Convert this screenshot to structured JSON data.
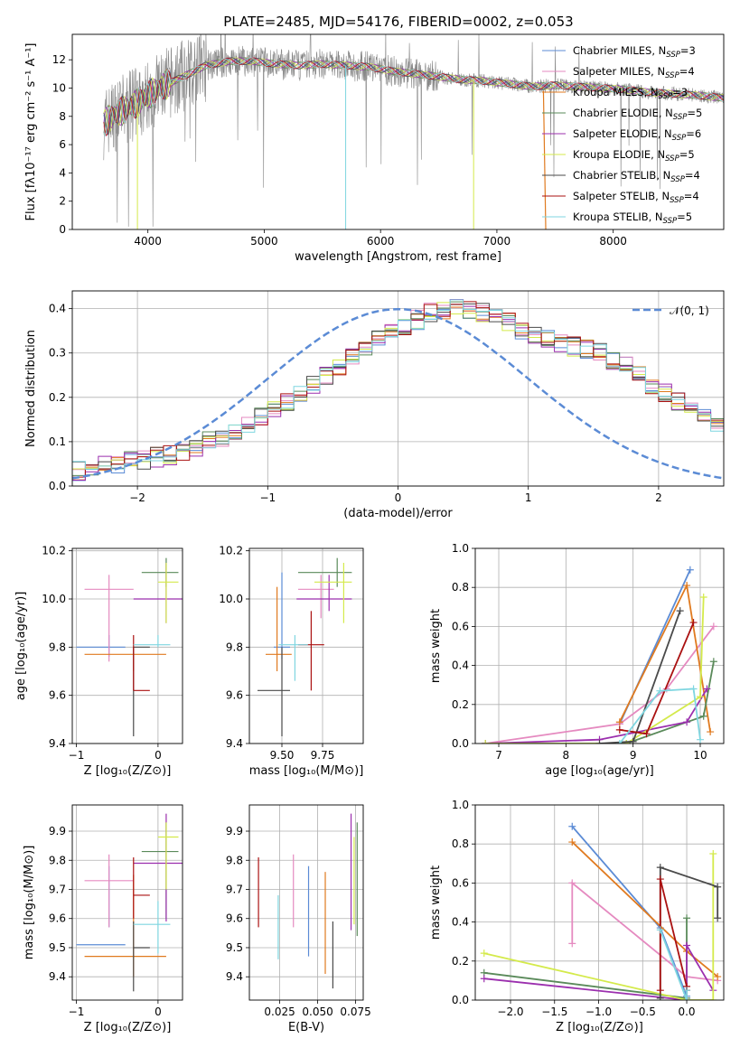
{
  "figure_title": "PLATE=2485, MJD=54176, FIBERID=0002, z=0.053",
  "colors": {
    "CM": "#5b8bd5",
    "SM": "#e58ac0",
    "KM": "#e07a1f",
    "CE": "#5a8a5a",
    "SE": "#9b2fae",
    "KE": "#d4ea4b",
    "CS": "#4a4a4a",
    "SS": "#aa1111",
    "KS": "#7fd6e0",
    "data": "#888888",
    "norm": "#5b8bd5"
  },
  "chart_data": [
    {
      "id": "spectrum",
      "type": "line",
      "xlabel": "wavelength [Angstrom, rest frame]",
      "ylabel": "Flux [fλ10⁻¹⁷ erg cm⁻² s⁻¹ A⁻¹]",
      "xlim": [
        3350,
        8950
      ],
      "ylim": [
        0,
        13.8
      ],
      "xticks": [
        4000,
        5000,
        6000,
        7000,
        8000
      ],
      "yticks": [
        0,
        2,
        4,
        6,
        8,
        10,
        12
      ],
      "data_range": [
        3620,
        8950
      ],
      "continuum": {
        "x": [
          3620,
          3700,
          3800,
          3900,
          4000,
          4100,
          4200,
          4300,
          4400,
          4500,
          4700,
          4900,
          5100,
          5300,
          5500,
          5700,
          5900,
          6100,
          6300,
          6500,
          6700,
          6900,
          7100,
          7300,
          7500,
          7700,
          7900,
          8100,
          8300,
          8500,
          8700,
          8950
        ],
        "y": [
          7.5,
          8.0,
          8.5,
          8.9,
          9.5,
          10.0,
          10.4,
          10.8,
          11.2,
          11.6,
          11.9,
          11.9,
          11.7,
          11.6,
          11.7,
          11.6,
          11.5,
          11.2,
          11.0,
          10.8,
          10.6,
          10.5,
          10.3,
          10.1,
          10.2,
          10.1,
          10.0,
          9.9,
          9.7,
          9.6,
          9.5,
          9.3
        ]
      },
      "legend": [
        {
          "label": "Chabrier MILES, N",
          "nssp": "3",
          "color": "CM"
        },
        {
          "label": "Salpeter MILES, N",
          "nssp": "4",
          "color": "SM"
        },
        {
          "label": "Kroupa MILES, N",
          "nssp": "3",
          "color": "KM"
        },
        {
          "label": "Chabrier ELODIE, N",
          "nssp": "5",
          "color": "CE"
        },
        {
          "label": "Salpeter ELODIE, N",
          "nssp": "6",
          "color": "SE"
        },
        {
          "label": "Kroupa ELODIE, N",
          "nssp": "5",
          "color": "KE"
        },
        {
          "label": "Chabrier STELIB, N",
          "nssp": "4",
          "color": "CS"
        },
        {
          "label": "Salpeter STELIB, N",
          "nssp": "4",
          "color": "SS"
        },
        {
          "label": "Kroupa STELIB, N",
          "nssp": "5",
          "color": "KS"
        }
      ]
    },
    {
      "id": "residuals",
      "type": "histogram",
      "xlabel": "(data-model)/error",
      "ylabel": "Normed distribution",
      "xlim": [
        -2.5,
        2.5
      ],
      "ylim": [
        0,
        0.44
      ],
      "xticks": [
        -2,
        -1,
        0,
        1,
        2
      ],
      "yticks": [
        0.0,
        0.1,
        0.2,
        0.3,
        0.4
      ],
      "bin_start": -2.5,
      "bin_width": 0.1,
      "base": [
        0.035,
        0.04,
        0.045,
        0.05,
        0.055,
        0.06,
        0.065,
        0.07,
        0.08,
        0.09,
        0.1,
        0.11,
        0.125,
        0.14,
        0.155,
        0.17,
        0.19,
        0.21,
        0.23,
        0.25,
        0.27,
        0.29,
        0.31,
        0.33,
        0.345,
        0.36,
        0.375,
        0.39,
        0.395,
        0.4,
        0.4,
        0.39,
        0.38,
        0.37,
        0.35,
        0.34,
        0.33,
        0.32,
        0.315,
        0.31,
        0.3,
        0.285,
        0.27,
        0.25,
        0.23,
        0.21,
        0.19,
        0.17,
        0.15,
        0.13,
        0.115,
        0.1,
        0.09,
        0.08,
        0.07,
        0.06,
        0.055,
        0.05,
        0.045,
        0.04,
        0.035
      ],
      "gauss_label": "𝒩(0, 1)"
    },
    {
      "id": "age-Z",
      "type": "errorbar",
      "xlabel": "Z [log₁₀(Z/Z⊙)]",
      "ylabel": "age  [log₁₀(age/yr)]",
      "xlim": [
        -1.05,
        0.3
      ],
      "ylim": [
        9.4,
        10.21
      ],
      "xticks": [
        -1,
        0
      ],
      "yticks": [
        9.4,
        9.6,
        9.8,
        10.0,
        10.2
      ],
      "points": [
        {
          "c": "CM",
          "x": -0.6,
          "y": 9.8,
          "xe": [
            -1.0,
            -0.4
          ],
          "ye": [
            9.76,
            9.85
          ]
        },
        {
          "c": "SM",
          "x": -0.6,
          "y": 10.04,
          "xe": [
            -0.9,
            -0.3
          ],
          "ye": [
            9.74,
            10.1
          ]
        },
        {
          "c": "KM",
          "x": -0.3,
          "y": 9.77,
          "xe": [
            -0.9,
            0.1
          ],
          "ye": [
            9.7,
            9.8
          ]
        },
        {
          "c": "CE",
          "x": 0.1,
          "y": 10.11,
          "xe": [
            -0.2,
            0.25
          ],
          "ye": [
            10.05,
            10.17
          ]
        },
        {
          "c": "SE",
          "x": 0.1,
          "y": 10.0,
          "xe": [
            -0.3,
            0.3
          ],
          "ye": [
            9.9,
            10.15
          ]
        },
        {
          "c": "KE",
          "x": 0.1,
          "y": 10.07,
          "xe": [
            0.0,
            0.25
          ],
          "ye": [
            9.9,
            10.15
          ]
        },
        {
          "c": "CS",
          "x": -0.3,
          "y": 9.8,
          "xe": [
            -0.3,
            -0.1
          ],
          "ye": [
            9.43,
            9.8
          ]
        },
        {
          "c": "SS",
          "x": -0.3,
          "y": 9.62,
          "xe": [
            -0.3,
            -0.1
          ],
          "ye": [
            9.62,
            9.85
          ]
        },
        {
          "c": "KS",
          "x": 0.0,
          "y": 9.81,
          "xe": [
            -0.3,
            0.15
          ],
          "ye": [
            9.8,
            9.85
          ]
        }
      ]
    },
    {
      "id": "age-mass",
      "type": "errorbar",
      "xlabel": "mass [log₁₀(M/M⊙)]",
      "ylabel": "",
      "xlim": [
        9.3,
        10.0
      ],
      "ylim": [
        9.4,
        10.21
      ],
      "xticks": [
        9.5,
        9.75
      ],
      "yticks": [
        9.4,
        9.6,
        9.8,
        10.0,
        10.2
      ],
      "points": [
        {
          "c": "CM",
          "x": 9.5,
          "y": 9.8,
          "xe": [
            9.45,
            9.55
          ],
          "ye": [
            9.75,
            10.11
          ]
        },
        {
          "c": "SM",
          "x": 9.74,
          "y": 10.04,
          "xe": [
            9.6,
            9.82
          ],
          "ye": [
            9.92,
            10.1
          ]
        },
        {
          "c": "KM",
          "x": 9.47,
          "y": 9.77,
          "xe": [
            9.4,
            9.56
          ],
          "ye": [
            9.7,
            10.05
          ]
        },
        {
          "c": "CE",
          "x": 9.84,
          "y": 10.11,
          "xe": [
            9.6,
            9.93
          ],
          "ye": [
            10.05,
            10.17
          ]
        },
        {
          "c": "SE",
          "x": 9.79,
          "y": 10.0,
          "xe": [
            9.59,
            9.93
          ],
          "ye": [
            9.95,
            10.1
          ]
        },
        {
          "c": "KE",
          "x": 9.88,
          "y": 10.07,
          "xe": [
            9.7,
            9.93
          ],
          "ye": [
            9.9,
            10.15
          ]
        },
        {
          "c": "CS",
          "x": 9.5,
          "y": 9.62,
          "xe": [
            9.35,
            9.55
          ],
          "ye": [
            9.43,
            9.8
          ]
        },
        {
          "c": "SS",
          "x": 9.68,
          "y": 9.81,
          "xe": [
            9.6,
            9.76
          ],
          "ye": [
            9.62,
            9.95
          ]
        },
        {
          "c": "KS",
          "x": 9.58,
          "y": 9.81,
          "xe": [
            9.48,
            9.66
          ],
          "ye": [
            9.66,
            9.85
          ]
        }
      ]
    },
    {
      "id": "weight-age",
      "type": "line",
      "xlabel": "age  [log₁₀(age/yr)]",
      "ylabel": "mass weight",
      "xlim": [
        6.65,
        10.35
      ],
      "ylim": [
        0,
        1.0
      ],
      "xticks": [
        7,
        8,
        9,
        10
      ],
      "yticks": [
        0.0,
        0.2,
        0.4,
        0.6,
        0.8,
        1.0
      ],
      "series": [
        {
          "c": "CM",
          "x": [
            8.8,
            9.85
          ],
          "y": [
            0.1,
            0.89
          ]
        },
        {
          "c": "SM",
          "x": [
            6.8,
            8.8,
            9.5,
            10.2
          ],
          "y": [
            0.0,
            0.1,
            0.28,
            0.6
          ]
        },
        {
          "c": "KM",
          "x": [
            8.8,
            9.8,
            10.15
          ],
          "y": [
            0.11,
            0.81,
            0.06
          ]
        },
        {
          "c": "CE",
          "x": [
            6.8,
            8.9,
            10.05,
            10.2
          ],
          "y": [
            0.0,
            0.0,
            0.14,
            0.42
          ]
        },
        {
          "c": "SE",
          "x": [
            6.8,
            8.5,
            9.8,
            10.1
          ],
          "y": [
            0.0,
            0.02,
            0.11,
            0.28
          ]
        },
        {
          "c": "KE",
          "x": [
            6.8,
            8.9,
            10.0,
            10.05
          ],
          "y": [
            0.0,
            0.0,
            0.24,
            0.75
          ]
        },
        {
          "c": "CS",
          "x": [
            8.5,
            9.0,
            9.7
          ],
          "y": [
            0.0,
            0.01,
            0.68
          ]
        },
        {
          "c": "SS",
          "x": [
            8.8,
            9.2,
            9.9
          ],
          "y": [
            0.07,
            0.05,
            0.62
          ]
        },
        {
          "c": "KS",
          "x": [
            8.8,
            9.4,
            9.9,
            10.0
          ],
          "y": [
            0.0,
            0.27,
            0.28,
            0.02
          ]
        }
      ]
    },
    {
      "id": "mass-Z",
      "type": "errorbar",
      "xlabel": "Z [log₁₀(Z/Z⊙)]",
      "ylabel": "mass [log₁₀(M/M⊙)]",
      "xlim": [
        -1.05,
        0.3
      ],
      "ylim": [
        9.32,
        9.99
      ],
      "xticks": [
        -1,
        0
      ],
      "yticks": [
        9.4,
        9.5,
        9.6,
        9.7,
        9.8,
        9.9
      ],
      "points": [
        {
          "c": "CM",
          "x": -0.6,
          "y": 9.51,
          "xe": [
            -1.0,
            -0.4
          ],
          "ye": [
            9.57,
            9.78
          ]
        },
        {
          "c": "SM",
          "x": -0.6,
          "y": 9.73,
          "xe": [
            -0.9,
            -0.3
          ],
          "ye": [
            9.57,
            9.82
          ]
        },
        {
          "c": "KM",
          "x": -0.3,
          "y": 9.47,
          "xe": [
            -0.9,
            0.1
          ],
          "ye": [
            9.4,
            9.75
          ]
        },
        {
          "c": "CE",
          "x": 0.1,
          "y": 9.83,
          "xe": [
            -0.2,
            0.25
          ],
          "ye": [
            9.6,
            9.93
          ]
        },
        {
          "c": "SE",
          "x": 0.1,
          "y": 9.79,
          "xe": [
            -0.3,
            0.3
          ],
          "ye": [
            9.59,
            9.96
          ]
        },
        {
          "c": "KE",
          "x": 0.1,
          "y": 9.88,
          "xe": [
            0.0,
            0.25
          ],
          "ye": [
            9.7,
            9.93
          ]
        },
        {
          "c": "CS",
          "x": -0.3,
          "y": 9.5,
          "xe": [
            -0.3,
            -0.1
          ],
          "ye": [
            9.35,
            9.59
          ]
        },
        {
          "c": "SS",
          "x": -0.3,
          "y": 9.68,
          "xe": [
            -0.3,
            -0.1
          ],
          "ye": [
            9.6,
            9.81
          ]
        },
        {
          "c": "KS",
          "x": 0.0,
          "y": 9.58,
          "xe": [
            -0.3,
            0.15
          ],
          "ye": [
            9.48,
            9.66
          ]
        }
      ]
    },
    {
      "id": "mass-EBV",
      "type": "errorbar",
      "xlabel": "E(B-V)",
      "ylabel": "",
      "xlim": [
        0.005,
        0.08
      ],
      "ylim": [
        9.32,
        9.99
      ],
      "xticks": [
        0.025,
        0.05,
        0.075
      ],
      "yticks": [
        9.4,
        9.5,
        9.6,
        9.7,
        9.8,
        9.9
      ],
      "points": [
        {
          "c": "CM",
          "x": 0.044,
          "ye": [
            9.47,
            9.78
          ]
        },
        {
          "c": "SM",
          "x": 0.034,
          "ye": [
            9.57,
            9.82
          ]
        },
        {
          "c": "KM",
          "x": 0.055,
          "ye": [
            9.41,
            9.76
          ]
        },
        {
          "c": "CE",
          "x": 0.076,
          "ye": [
            9.54,
            9.93
          ]
        },
        {
          "c": "SE",
          "x": 0.072,
          "ye": [
            9.56,
            9.96
          ]
        },
        {
          "c": "KE",
          "x": 0.074,
          "ye": [
            9.58,
            9.88
          ]
        },
        {
          "c": "CS",
          "x": 0.06,
          "ye": [
            9.36,
            9.59
          ]
        },
        {
          "c": "SS",
          "x": 0.011,
          "ye": [
            9.57,
            9.81
          ]
        },
        {
          "c": "KS",
          "x": 0.024,
          "ye": [
            9.46,
            9.68
          ]
        }
      ]
    },
    {
      "id": "weight-Z",
      "type": "line",
      "xlabel": "Z [log₁₀(Z/Z⊙)]",
      "ylabel": "mass weight",
      "xlim": [
        -2.4,
        0.42
      ],
      "ylim": [
        0,
        1.0
      ],
      "xticks": [
        -2.0,
        -1.5,
        -1.0,
        -0.5,
        0.0
      ],
      "yticks": [
        0.0,
        0.2,
        0.4,
        0.6,
        0.8,
        1.0
      ],
      "series": [
        {
          "c": "CM",
          "x": [
            -1.3,
            -0.3,
            0.0
          ],
          "y": [
            0.89,
            0.37,
            0.02
          ]
        },
        {
          "c": "SM",
          "x": [
            -1.3,
            -1.3,
            0.0,
            0.35
          ],
          "y": [
            0.29,
            0.6,
            0.12,
            0.1
          ]
        },
        {
          "c": "KM",
          "x": [
            -1.3,
            0.0,
            0.35
          ],
          "y": [
            0.81,
            0.25,
            0.12
          ]
        },
        {
          "c": "CE",
          "x": [
            -2.3,
            0.0,
            0.0
          ],
          "y": [
            0.14,
            0.01,
            0.42
          ]
        },
        {
          "c": "SE",
          "x": [
            -2.3,
            0.0,
            0.0,
            0.3
          ],
          "y": [
            0.11,
            0.0,
            0.28,
            0.05
          ]
        },
        {
          "c": "KE",
          "x": [
            -2.3,
            0.0,
            0.3,
            0.3
          ],
          "y": [
            0.24,
            0.0,
            0.0,
            0.75
          ]
        },
        {
          "c": "CS",
          "x": [
            -0.3,
            -0.3,
            0.35,
            0.35
          ],
          "y": [
            0.01,
            0.68,
            0.58,
            0.42
          ]
        },
        {
          "c": "SS",
          "x": [
            -0.3,
            -0.3,
            0.0,
            0.0
          ],
          "y": [
            0.05,
            0.62,
            0.07,
            0.05
          ]
        },
        {
          "c": "KS",
          "x": [
            -0.3,
            0.0,
            0.0
          ],
          "y": [
            0.36,
            0.0,
            0.05
          ]
        }
      ]
    }
  ]
}
